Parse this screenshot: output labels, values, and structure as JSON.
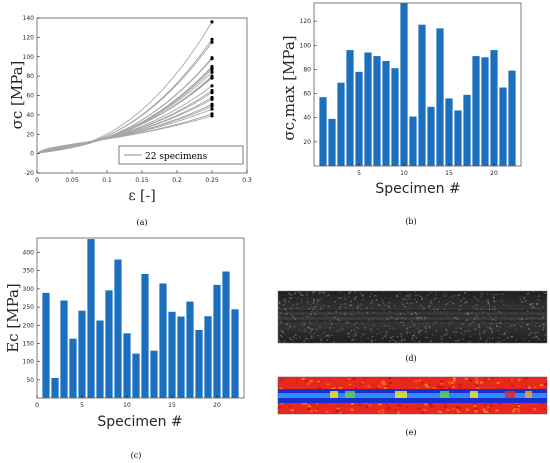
{
  "panels": {
    "a": {
      "caption": "(a)"
    },
    "b": {
      "caption": "(b)"
    },
    "c": {
      "caption": "(c)"
    },
    "d": {
      "caption": "(d)"
    },
    "e": {
      "caption": "(e)"
    }
  },
  "chart_data": [
    {
      "panel": "a",
      "type": "line",
      "ylabel": "σc [MPa]",
      "xlabel": "ε [-]",
      "xlim": [
        0,
        0.3
      ],
      "ylim": [
        -20,
        140
      ],
      "xticks": [
        "0",
        "0.05",
        "0.1",
        "0.15",
        "0.2",
        "0.25",
        "0.3"
      ],
      "yticks": [
        "-20",
        "0",
        "20",
        "40",
        "60",
        "80",
        "100",
        "120",
        "140"
      ],
      "legend": {
        "label": "22 specimens",
        "placement": "bottom-right"
      },
      "line_color": "#a6a6a6",
      "endpoint_color": "#000000",
      "endpoint_x": 0.25,
      "endpoints": [
        136,
        118,
        115,
        99,
        98,
        90,
        89,
        87,
        84,
        80,
        79,
        78,
        70,
        65,
        63,
        58,
        56,
        51,
        49,
        46,
        41,
        39
      ]
    },
    {
      "panel": "b",
      "type": "bar",
      "ylabel": "σc,max [MPa]",
      "xlabel": "Specimen #",
      "xlim": [
        0,
        23
      ],
      "ylim": [
        0,
        135
      ],
      "xticks": [
        "5",
        "10",
        "15",
        "20"
      ],
      "yticks": [
        "20",
        "40",
        "60",
        "80",
        "100",
        "120"
      ],
      "bar_color": "#1a6fbf",
      "categories": [
        1,
        2,
        3,
        4,
        5,
        6,
        7,
        8,
        9,
        10,
        11,
        12,
        13,
        14,
        15,
        16,
        17,
        18,
        19,
        20,
        21,
        22
      ],
      "values": [
        57,
        39,
        69,
        96,
        78,
        94,
        91,
        87,
        81,
        135,
        41,
        117,
        49,
        114,
        56,
        46,
        59,
        91,
        90,
        96,
        65,
        79
      ]
    },
    {
      "panel": "c",
      "type": "bar",
      "ylabel": "Ec [MPa]",
      "xlabel": "Specimen #",
      "xlim": [
        0,
        23
      ],
      "ylim": [
        0,
        440
      ],
      "xticks": [
        "0",
        "5",
        "10",
        "15",
        "20"
      ],
      "yticks": [
        "50",
        "100",
        "150",
        "200",
        "250",
        "300",
        "350",
        "400"
      ],
      "bar_color": "#1a6fbf",
      "categories": [
        1,
        2,
        3,
        4,
        5,
        6,
        7,
        8,
        9,
        10,
        11,
        12,
        13,
        14,
        15,
        16,
        17,
        18,
        19,
        20,
        21,
        22
      ],
      "values": [
        289,
        55,
        268,
        163,
        240,
        437,
        213,
        296,
        381,
        178,
        122,
        341,
        130,
        315,
        237,
        224,
        265,
        187,
        225,
        311,
        348,
        244
      ]
    }
  ]
}
